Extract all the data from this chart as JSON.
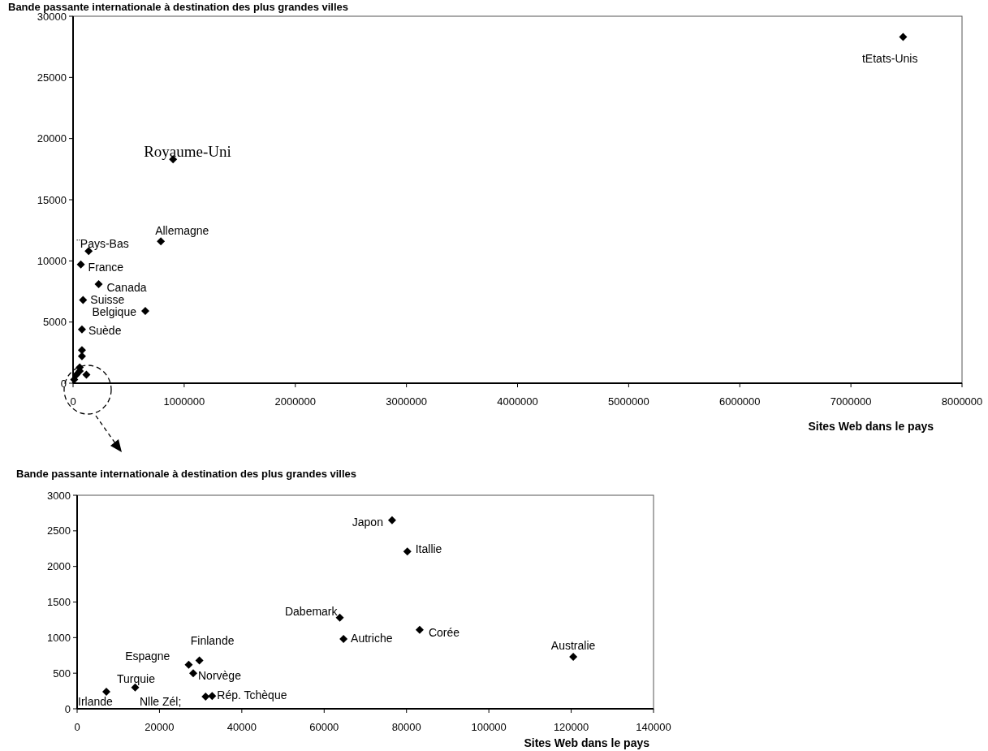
{
  "chart_data": [
    {
      "type": "scatter",
      "title": "Bande passante internationale à destination des plus grandes villes",
      "xlabel": "Sites Web dans le pays",
      "xlim": [
        0,
        8000000
      ],
      "ylim": [
        0,
        30000
      ],
      "xticks": [
        0,
        1000000,
        2000000,
        3000000,
        4000000,
        5000000,
        6000000,
        7000000,
        8000000
      ],
      "yticks": [
        0,
        5000,
        10000,
        15000,
        20000,
        25000,
        30000
      ],
      "marker": "diamond",
      "color": "#000000",
      "x": [
        7470000,
        900000,
        790000,
        140000,
        70000,
        230000,
        90000,
        650000,
        80000,
        80000,
        80000,
        120000,
        60000,
        60000,
        30000,
        10000
      ],
      "values": [
        28300,
        18300,
        11600,
        10800,
        9700,
        8100,
        6800,
        5900,
        4400,
        2700,
        2200,
        700,
        1300,
        1000,
        700,
        300
      ],
      "annotations": [
        {
          "text": "tEtats-Unis",
          "x": 7470000,
          "y": 28300
        },
        {
          "text": "Royaume-Uni",
          "x": 900000,
          "y": 18300
        },
        {
          "text": "Allemagne",
          "x": 790000,
          "y": 11600
        },
        {
          "text": "¨Pays-Bas",
          "x": 140000,
          "y": 10800
        },
        {
          "text": "France",
          "x": 70000,
          "y": 9700
        },
        {
          "text": "Canada",
          "x": 230000,
          "y": 8100
        },
        {
          "text": "Suisse",
          "x": 90000,
          "y": 6800
        },
        {
          "text": "Belgique",
          "x": 650000,
          "y": 5900
        },
        {
          "text": "Suède",
          "x": 80000,
          "y": 4400
        }
      ]
    },
    {
      "type": "scatter",
      "title": "Bande passante internationale à destination des plus grandes villes",
      "xlabel": "Sites Web dans le pays",
      "xlim": [
        0,
        140000
      ],
      "ylim": [
        0,
        3000
      ],
      "xticks": [
        0,
        20000,
        40000,
        60000,
        80000,
        100000,
        120000,
        140000
      ],
      "yticks": [
        0,
        500,
        1000,
        1500,
        2000,
        2500,
        3000
      ],
      "marker": "diamond",
      "color": "#000000",
      "x": [
        7100,
        14100,
        27100,
        29700,
        28200,
        31200,
        32800,
        63800,
        64700,
        76500,
        80200,
        83200,
        120500
      ],
      "values": [
        240,
        300,
        620,
        680,
        500,
        170,
        180,
        1280,
        980,
        2650,
        2210,
        1110,
        730
      ],
      "annotations": [
        {
          "text": "Irlande",
          "x": 7100,
          "y": 240
        },
        {
          "text": "Turquie",
          "x": 14100,
          "y": 300
        },
        {
          "text": "Espagne",
          "x": 27100,
          "y": 620
        },
        {
          "text": "Finlande",
          "x": 29700,
          "y": 680
        },
        {
          "text": "Norvège",
          "x": 28200,
          "y": 500
        },
        {
          "text": "Rép. Tchèque",
          "x": 32800,
          "y": 180
        },
        {
          "text": "Dabemark",
          "x": 63800,
          "y": 1280
        },
        {
          "text": "Autriche",
          "x": 64700,
          "y": 980
        },
        {
          "text": "Japon",
          "x": 76500,
          "y": 2650
        },
        {
          "text": "Itallie",
          "x": 80200,
          "y": 2210
        },
        {
          "text": "Corée",
          "x": 83200,
          "y": 1110
        },
        {
          "text": "Australie",
          "x": 120500,
          "y": 730
        },
        "Nlle Zél;"
      ]
    }
  ]
}
